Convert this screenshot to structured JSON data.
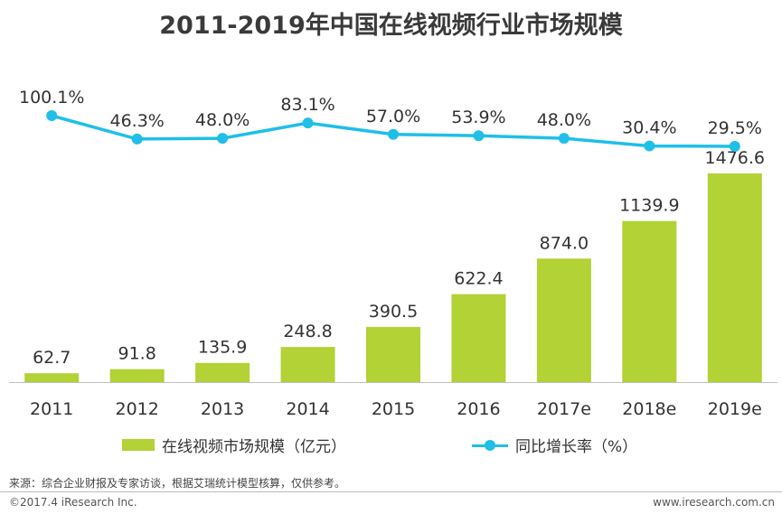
{
  "chart_data": {
    "type": "bar",
    "title": "2011-2019年中国在线视频行业市场规模",
    "categories": [
      "2011",
      "2012",
      "2013",
      "2014",
      "2015",
      "2016",
      "2017e",
      "2018e",
      "2019e"
    ],
    "series": [
      {
        "name": "在线视频市场规模（亿元）",
        "type": "bar",
        "values": [
          62.7,
          91.8,
          135.9,
          248.8,
          390.5,
          622.4,
          874.0,
          1139.9,
          1476.6
        ],
        "labels": [
          "62.7",
          "91.8",
          "135.9",
          "248.8",
          "390.5",
          "622.4",
          "874.0",
          "1139.9",
          "1476.6"
        ],
        "color": "#b2d235"
      },
      {
        "name": "同比增长率（%）",
        "type": "line",
        "values": [
          100.1,
          46.3,
          48.0,
          83.1,
          57.0,
          53.9,
          48.0,
          30.4,
          29.5
        ],
        "labels": [
          "100.1%",
          "46.3%",
          "48.0%",
          "83.1%",
          "57.0%",
          "53.9%",
          "48.0%",
          "30.4%",
          "29.5%"
        ],
        "color": "#1fbfe8"
      }
    ],
    "legend_position": "bottom",
    "grid": false
  },
  "footer": {
    "source": "来源：综合企业财报及专家访谈，根据艾瑞统计模型核算，仅供参考。",
    "copyright": "©2017.4 iResearch Inc.",
    "website": "www.iresearch.com.cn"
  }
}
